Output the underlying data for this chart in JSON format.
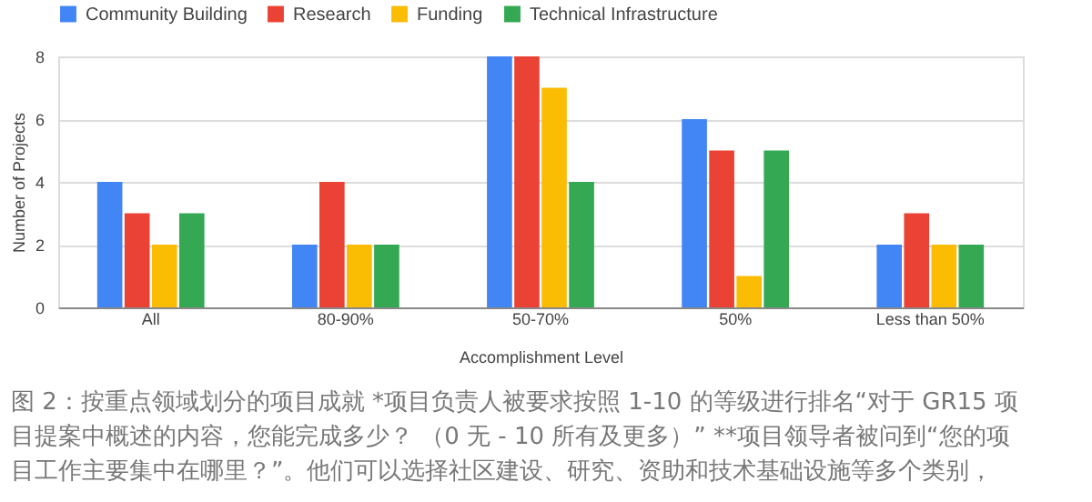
{
  "chart_data": {
    "type": "bar",
    "xlabel": "Accomplishment Level",
    "ylabel": "Number of Projects",
    "categories": [
      "All",
      "80-90%",
      "50-70%",
      "50%",
      "Less than 50%"
    ],
    "series": [
      {
        "name": "Community Building",
        "color": "#4285f4",
        "values": [
          4,
          2,
          8,
          6,
          2
        ]
      },
      {
        "name": "Research",
        "color": "#ea4335",
        "values": [
          3,
          4,
          8,
          5,
          3
        ]
      },
      {
        "name": "Funding",
        "color": "#fbbc04",
        "values": [
          2,
          2,
          7,
          1,
          2
        ]
      },
      {
        "name": "Technical Infrastructure",
        "color": "#34a853",
        "values": [
          3,
          2,
          4,
          5,
          2
        ]
      }
    ],
    "ylim": [
      0,
      8
    ],
    "yticks": [
      0,
      2,
      4,
      6,
      8
    ],
    "grid": "y",
    "legend": "top",
    "annotations": [
      "图 2：按重点领域划分的项目成就 *项目负责人被要求按照 1-10 的等级进行排名“对于 GR15 项",
      "目提案中概述的内容，您能完成多少？ （0 无 - 10 所有及更多）” **项目领导者被问到“您的项",
      "目工作主要集中在哪里？”。他们可以选择社区建设、研究、资助和技术基础设施等多个类别，"
    ]
  }
}
